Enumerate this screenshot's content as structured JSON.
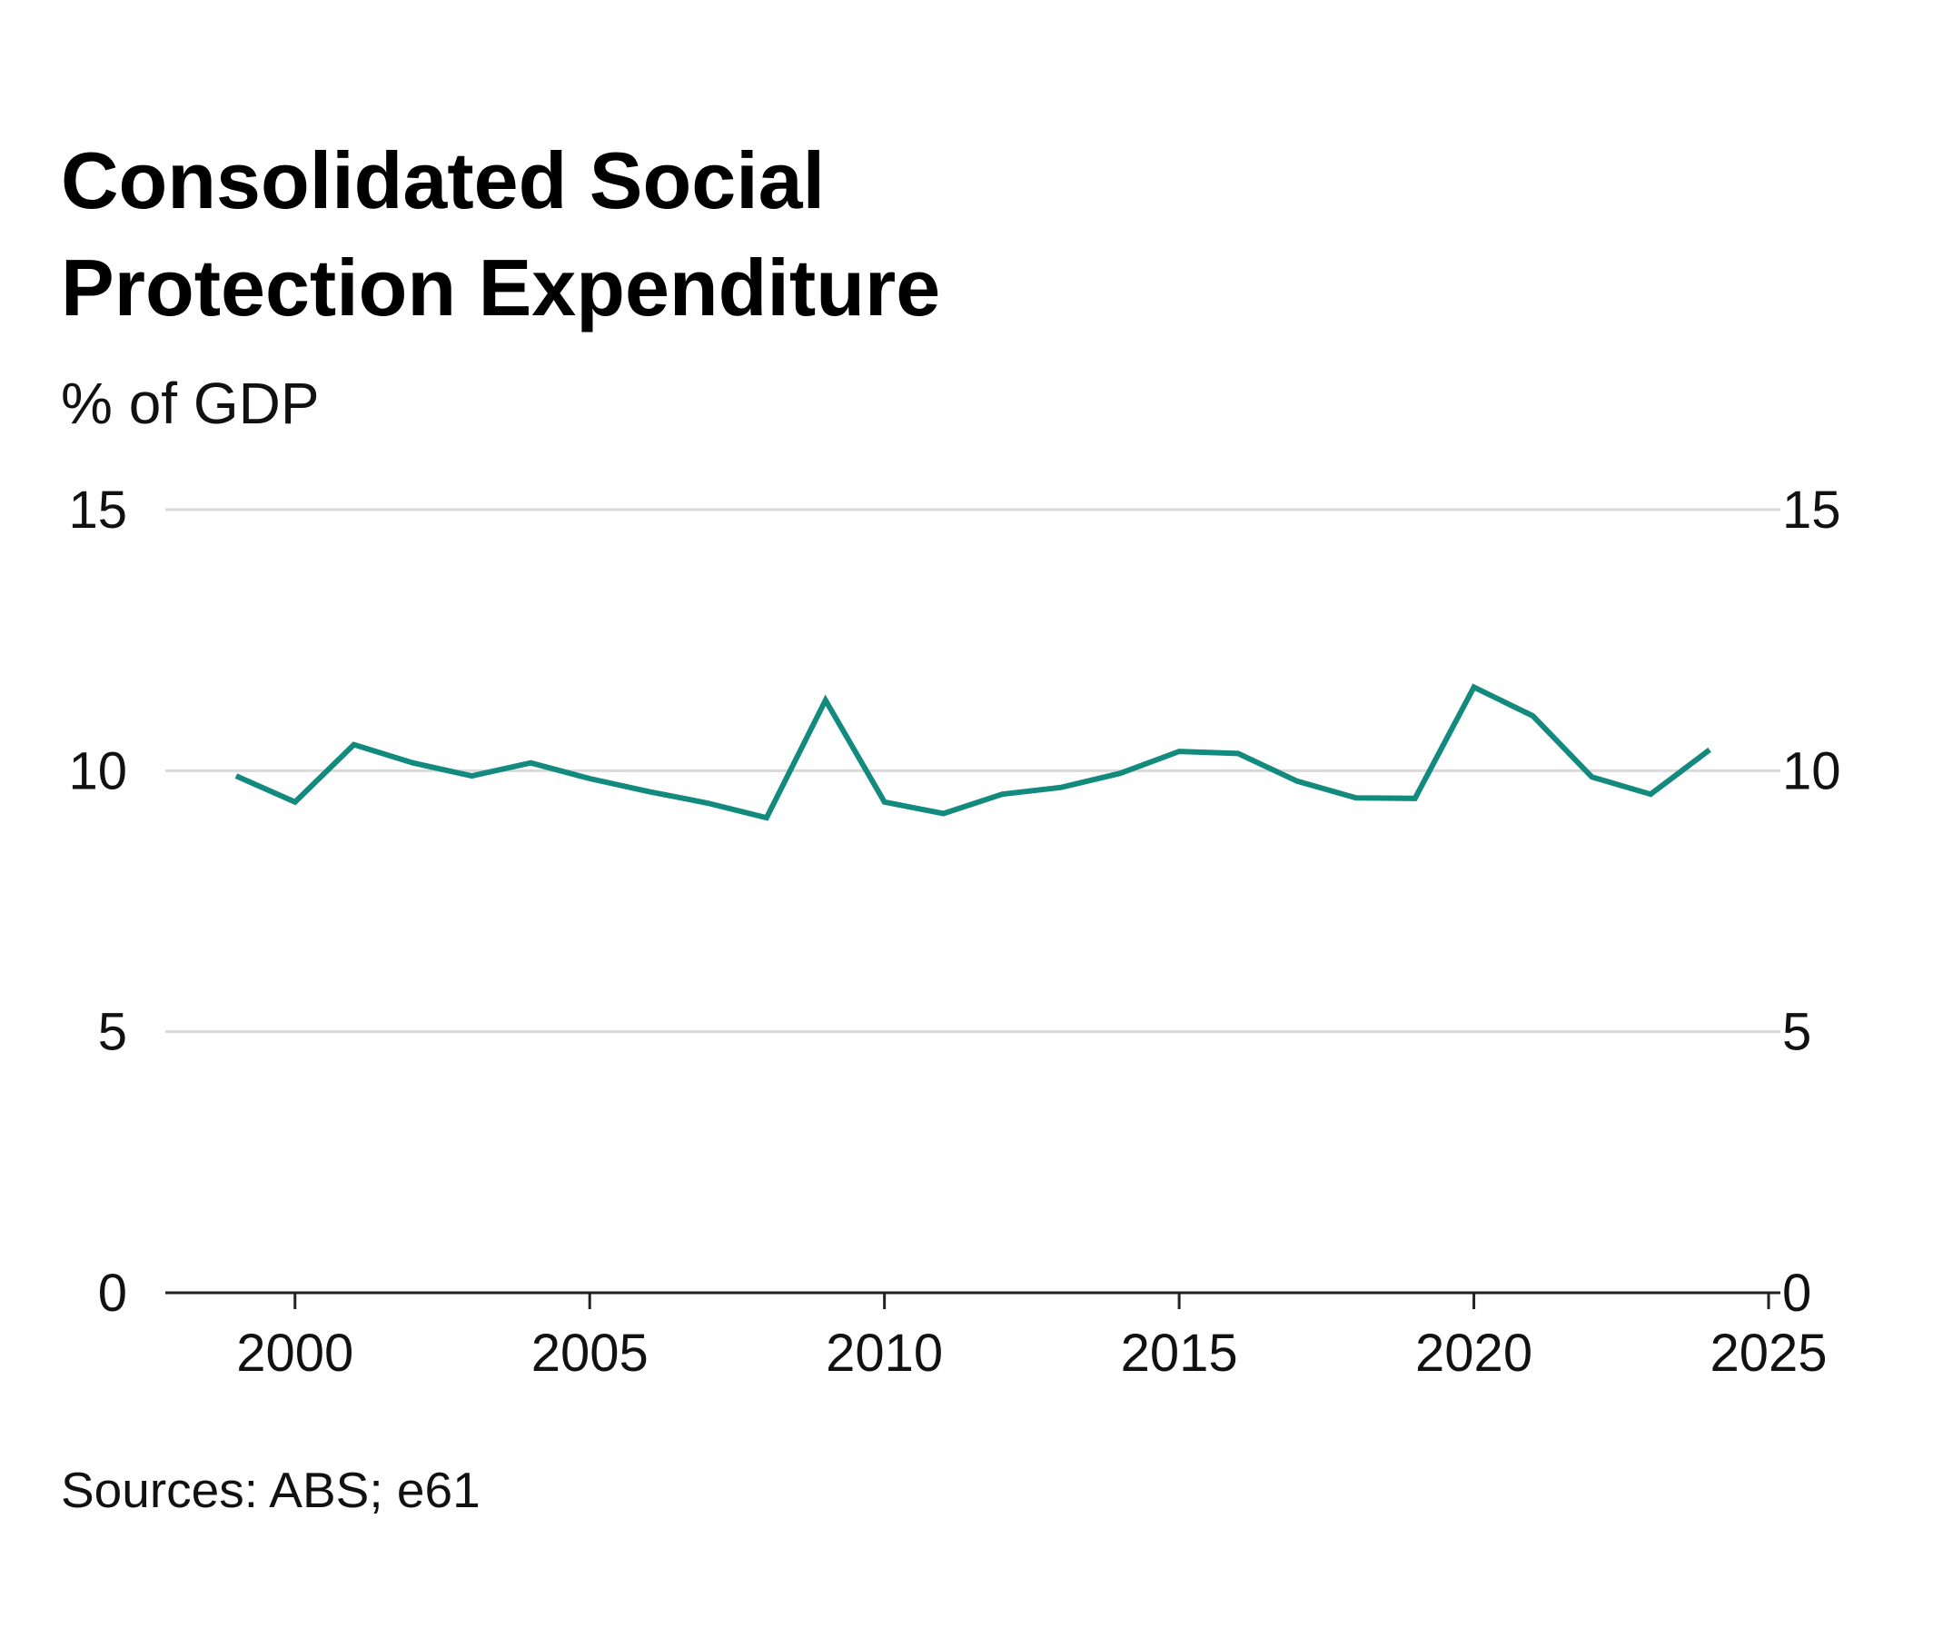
{
  "title_lines": [
    "Consolidated Social",
    "Protection Expenditure"
  ],
  "subtitle": "% of GDP",
  "source": "Sources: ABS; e61",
  "colors": {
    "line": "#138a7e",
    "grid": "#d9d9d9",
    "axis": "#222222"
  },
  "chart_data": {
    "type": "line",
    "title": "Consolidated Social Protection Expenditure",
    "ylabel": "% of GDP",
    "xlim": [
      1997.8,
      2025.2
    ],
    "ylim": [
      0,
      15
    ],
    "x_ticks": [
      2000,
      2005,
      2010,
      2015,
      2020,
      2025
    ],
    "y_ticks": [
      0,
      5,
      10,
      15
    ],
    "y_axis_sides": [
      "left",
      "right"
    ],
    "grid": "horizontal",
    "legend": "none",
    "series": [
      {
        "x": [
          1999,
          2000,
          2001,
          2002,
          2003,
          2004,
          2005,
          2006,
          2007,
          2008,
          2009,
          2010,
          2011,
          2012,
          2013,
          2014,
          2015,
          2016,
          2017,
          2018,
          2019,
          2020,
          2021,
          2022,
          2023,
          2024
        ],
        "values": [
          9.9,
          9.4,
          10.5,
          10.15,
          9.9,
          10.15,
          9.85,
          9.6,
          9.38,
          9.1,
          11.35,
          9.4,
          9.18,
          9.55,
          9.68,
          9.95,
          10.37,
          10.33,
          9.8,
          9.48,
          9.47,
          11.6,
          11.05,
          9.88,
          9.55,
          10.4
        ]
      }
    ]
  }
}
